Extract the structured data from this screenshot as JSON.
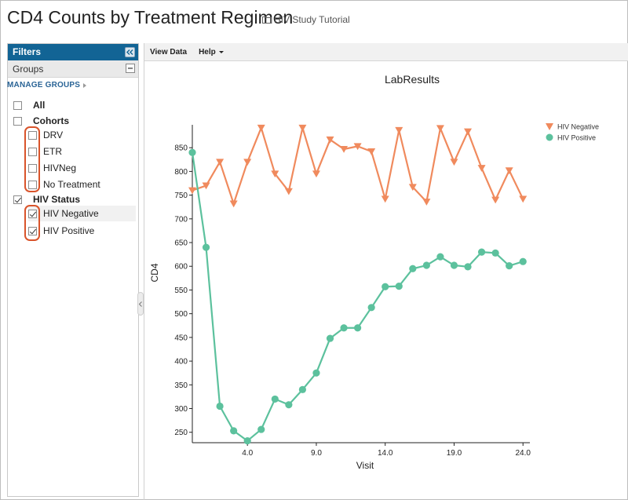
{
  "page": {
    "title": "CD4 Counts by Treatment Regimen",
    "folder_link": "HIV Study Tutorial"
  },
  "filters": {
    "header": "Filters",
    "groups_label": "Groups",
    "manage_groups": "MANAGE GROUPS",
    "items": [
      {
        "label": "All",
        "checked": false,
        "header": true
      },
      {
        "label": "Cohorts",
        "checked": false,
        "header": true
      },
      {
        "label": "DRV",
        "checked": false,
        "header": false
      },
      {
        "label": "ETR",
        "checked": false,
        "header": false
      },
      {
        "label": "HIVNeg",
        "checked": false,
        "header": false
      },
      {
        "label": "No Treatment",
        "checked": false,
        "header": false
      },
      {
        "label": "HIV Status",
        "checked": true,
        "header": true
      },
      {
        "label": "HIV Negative",
        "checked": true,
        "header": false
      },
      {
        "label": "HIV Positive",
        "checked": true,
        "header": false
      }
    ]
  },
  "toolbar": {
    "view_data": "View Data",
    "help": "Help"
  },
  "colors": {
    "hiv_negative": "#f08a5d",
    "hiv_positive": "#5cc19d",
    "accent": "#126495",
    "highlight_outline": "#d9542b"
  },
  "chart_data": {
    "type": "line",
    "title": "LabResults",
    "xlabel": "Visit",
    "ylabel": "CD4",
    "xlim": [
      0,
      24.5
    ],
    "ylim": [
      228,
      895
    ],
    "x_ticks": [
      "4.0",
      "9.0",
      "14.0",
      "19.0",
      "24.0"
    ],
    "y_ticks": [
      "250",
      "300",
      "350",
      "400",
      "450",
      "500",
      "550",
      "600",
      "650",
      "700",
      "750",
      "800",
      "850"
    ],
    "legend_position": "top-right",
    "grid": false,
    "series": [
      {
        "name": "HIV Negative",
        "marker": "triangle-down",
        "color": "#f08a5d",
        "x": [
          0,
          1,
          2,
          3,
          4,
          5,
          6,
          7,
          8,
          9,
          10,
          11,
          12,
          13,
          14,
          15,
          16,
          17,
          18,
          19,
          20,
          21,
          22,
          23,
          24
        ],
        "y": [
          760,
          770,
          820,
          732,
          820,
          892,
          795,
          758,
          892,
          795,
          867,
          847,
          853,
          842,
          742,
          887,
          767,
          736,
          891,
          820,
          884,
          807,
          740,
          802,
          742
        ]
      },
      {
        "name": "HIV Positive",
        "marker": "circle",
        "color": "#5cc19d",
        "x": [
          0,
          1,
          2,
          3,
          4,
          5,
          6,
          7,
          8,
          9,
          10,
          11,
          12,
          13,
          14,
          15,
          16,
          17,
          18,
          19,
          20,
          21,
          22,
          23,
          24
        ],
        "y": [
          840,
          640,
          305,
          253,
          232,
          256,
          320,
          308,
          340,
          375,
          448,
          470,
          470,
          513,
          557,
          558,
          595,
          602,
          620,
          602,
          599,
          630,
          628,
          601,
          610
        ]
      }
    ]
  }
}
